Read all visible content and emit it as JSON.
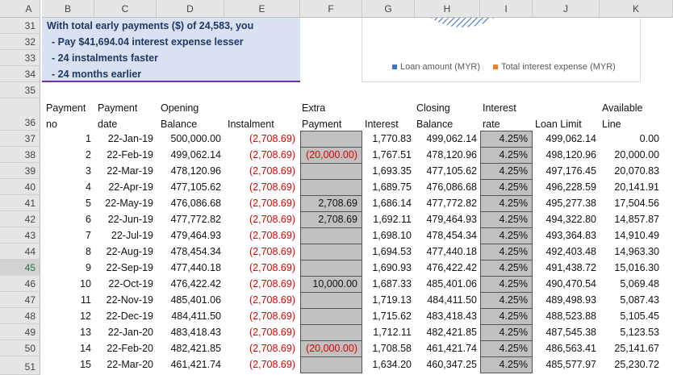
{
  "columns": [
    "A",
    "B",
    "C",
    "D",
    "E",
    "F",
    "G",
    "H",
    "I",
    "J",
    "K"
  ],
  "rows": [
    "31",
    "32",
    "33",
    "34",
    "35",
    "36",
    "37",
    "38",
    "39",
    "40",
    "41",
    "42",
    "43",
    "44",
    "45",
    "46",
    "47",
    "48",
    "49",
    "50",
    "51"
  ],
  "summary": {
    "line1": "With total early payments ($) of 24,583, you",
    "line2": "- Pay $41,694.04 interest expense lesser",
    "line3": "- 24 instalments faster",
    "line4": "- 24 months earlier"
  },
  "chart": {
    "legend": [
      {
        "label": "Loan amount (MYR)",
        "color": "#4472c4"
      },
      {
        "label": "Total interest expense (MYR)",
        "color": "#ed7d31"
      }
    ]
  },
  "table": {
    "headers": {
      "payment_no": [
        "Payment",
        "no"
      ],
      "payment_date": [
        "Payment",
        "date"
      ],
      "opening_balance": [
        "Opening",
        "Balance"
      ],
      "instalment": [
        "",
        "Instalment"
      ],
      "extra_payment": [
        "Extra",
        "Payment"
      ],
      "interest": [
        "",
        "Interest"
      ],
      "closing_balance": [
        "Closing",
        "Balance"
      ],
      "interest_rate": [
        "Interest",
        "rate"
      ],
      "loan_limit": [
        "",
        "Loan Limit"
      ],
      "available_line": [
        "Available",
        "Line"
      ]
    },
    "rows": [
      {
        "no": "1",
        "date": "22-Jan-19",
        "opening": "500,000.00",
        "instalment": "(2,708.69)",
        "extra": "",
        "interest": "1,770.83",
        "closing": "499,062.14",
        "rate": "4.25%",
        "limit": "499,062.14",
        "available": "0.00"
      },
      {
        "no": "2",
        "date": "22-Feb-19",
        "opening": "499,062.14",
        "instalment": "(2,708.69)",
        "extra": "(20,000.00)",
        "interest": "1,767.51",
        "closing": "478,120.96",
        "rate": "4.25%",
        "limit": "498,120.96",
        "available": "20,000.00"
      },
      {
        "no": "3",
        "date": "22-Mar-19",
        "opening": "478,120.96",
        "instalment": "(2,708.69)",
        "extra": "",
        "interest": "1,693.35",
        "closing": "477,105.62",
        "rate": "4.25%",
        "limit": "497,176.45",
        "available": "20,070.83"
      },
      {
        "no": "4",
        "date": "22-Apr-19",
        "opening": "477,105.62",
        "instalment": "(2,708.69)",
        "extra": "",
        "interest": "1,689.75",
        "closing": "476,086.68",
        "rate": "4.25%",
        "limit": "496,228.59",
        "available": "20,141.91"
      },
      {
        "no": "5",
        "date": "22-May-19",
        "opening": "476,086.68",
        "instalment": "(2,708.69)",
        "extra": "2,708.69",
        "interest": "1,686.14",
        "closing": "477,772.82",
        "rate": "4.25%",
        "limit": "495,277.38",
        "available": "17,504.56"
      },
      {
        "no": "6",
        "date": "22-Jun-19",
        "opening": "477,772.82",
        "instalment": "(2,708.69)",
        "extra": "2,708.69",
        "interest": "1,692.11",
        "closing": "479,464.93",
        "rate": "4.25%",
        "limit": "494,322.80",
        "available": "14,857.87"
      },
      {
        "no": "7",
        "date": "22-Jul-19",
        "opening": "479,464.93",
        "instalment": "(2,708.69)",
        "extra": "",
        "interest": "1,698.10",
        "closing": "478,454.34",
        "rate": "4.25%",
        "limit": "493,364.83",
        "available": "14,910.49"
      },
      {
        "no": "8",
        "date": "22-Aug-19",
        "opening": "478,454.34",
        "instalment": "(2,708.69)",
        "extra": "",
        "interest": "1,694.53",
        "closing": "477,440.18",
        "rate": "4.25%",
        "limit": "492,403.48",
        "available": "14,963.30"
      },
      {
        "no": "9",
        "date": "22-Sep-19",
        "opening": "477,440.18",
        "instalment": "(2,708.69)",
        "extra": "",
        "interest": "1,690.93",
        "closing": "476,422.42",
        "rate": "4.25%",
        "limit": "491,438.72",
        "available": "15,016.30"
      },
      {
        "no": "10",
        "date": "22-Oct-19",
        "opening": "476,422.42",
        "instalment": "(2,708.69)",
        "extra": "10,000.00",
        "interest": "1,687.33",
        "closing": "485,401.06",
        "rate": "4.25%",
        "limit": "490,470.54",
        "available": "5,069.48"
      },
      {
        "no": "11",
        "date": "22-Nov-19",
        "opening": "485,401.06",
        "instalment": "(2,708.69)",
        "extra": "",
        "interest": "1,719.13",
        "closing": "484,411.50",
        "rate": "4.25%",
        "limit": "489,498.93",
        "available": "5,087.43"
      },
      {
        "no": "12",
        "date": "22-Dec-19",
        "opening": "484,411.50",
        "instalment": "(2,708.69)",
        "extra": "",
        "interest": "1,715.62",
        "closing": "483,418.43",
        "rate": "4.25%",
        "limit": "488,523.88",
        "available": "5,105.45"
      },
      {
        "no": "13",
        "date": "22-Jan-20",
        "opening": "483,418.43",
        "instalment": "(2,708.69)",
        "extra": "",
        "interest": "1,712.11",
        "closing": "482,421.85",
        "rate": "4.25%",
        "limit": "487,545.38",
        "available": "5,123.53"
      },
      {
        "no": "14",
        "date": "22-Feb-20",
        "opening": "482,421.85",
        "instalment": "(2,708.69)",
        "extra": "(20,000.00)",
        "interest": "1,708.58",
        "closing": "461,421.74",
        "rate": "4.25%",
        "limit": "486,563.41",
        "available": "25,141.67"
      },
      {
        "no": "15",
        "date": "22-Mar-20",
        "opening": "461,421.74",
        "instalment": "(2,708.69)",
        "extra": "",
        "interest": "1,634.20",
        "closing": "460,347.25",
        "rate": "4.25%",
        "limit": "485,577.97",
        "available": "25,230.72"
      }
    ]
  }
}
